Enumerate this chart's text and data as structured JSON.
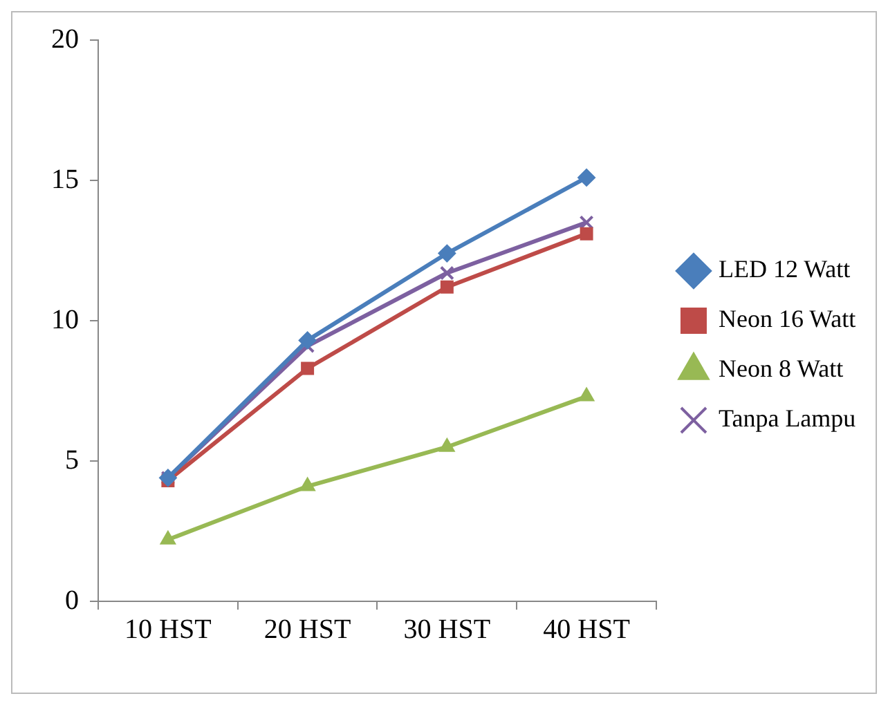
{
  "chart_data": {
    "type": "line",
    "categories": [
      "10 HST",
      "20 HST",
      "30 HST",
      "40 HST"
    ],
    "series": [
      {
        "name": "LED 12 Watt",
        "color": "#4a7ebb",
        "marker": "diamond",
        "values": [
          4.4,
          9.3,
          12.4,
          15.1
        ]
      },
      {
        "name": "Neon 16 Watt",
        "color": "#be4b48",
        "marker": "square",
        "values": [
          4.3,
          8.3,
          11.2,
          13.1
        ]
      },
      {
        "name": "Neon 8 Watt",
        "color": "#98b954",
        "marker": "triangle",
        "values": [
          2.2,
          4.1,
          5.5,
          7.3
        ]
      },
      {
        "name": "Tanpa Lampu",
        "color": "#7d60a0",
        "marker": "cross",
        "values": [
          4.4,
          9.1,
          11.7,
          13.5
        ]
      }
    ],
    "ylim": [
      0,
      20
    ],
    "yticks": [
      0,
      5,
      10,
      15,
      20
    ],
    "grid": false,
    "legend": "right"
  }
}
